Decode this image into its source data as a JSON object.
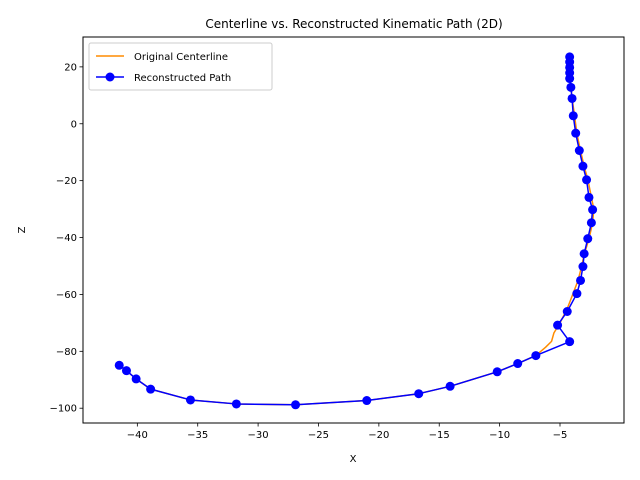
{
  "chart_data": {
    "type": "line",
    "title": "Centerline vs. Reconstructed Kinematic Path (2D)",
    "xlabel": "X",
    "ylabel": "Z",
    "xlim": [
      -44.5,
      0.3
    ],
    "ylim": [
      -105.2,
      30.5
    ],
    "xticks": [
      -40,
      -35,
      -30,
      -25,
      -20,
      -15,
      -10,
      -5
    ],
    "yticks": [
      -100,
      -80,
      -60,
      -40,
      -20,
      0,
      20
    ],
    "xtick_labels": [
      "−40",
      "−35",
      "−30",
      "−25",
      "−20",
      "−15",
      "−10",
      "−5"
    ],
    "ytick_labels": [
      "−100",
      "−80",
      "−60",
      "−40",
      "−20",
      "0",
      "20"
    ],
    "grid": false,
    "legend_position": "upper-left",
    "series": [
      {
        "name": "Original Centerline",
        "color": "#ff8c00",
        "marker": "none",
        "x": [
          -4.2,
          -4.2,
          -4.2,
          -4.2,
          -4.2,
          -4.1,
          -4.0,
          -3.8,
          -3.6,
          -3.3,
          -3.0,
          -2.7,
          -2.4,
          -2.2,
          -2.3,
          -2.6,
          -3.0,
          -3.2,
          -3.5,
          -3.9,
          -4.4,
          -5.0,
          -5.5,
          -5.7,
          -6.2,
          -7.0,
          -8.5,
          -10.2,
          -14.1,
          -16.7,
          -21.0,
          -26.9,
          -31.8,
          -35.6,
          -38.9,
          -40.1,
          -40.9,
          -41.5
        ],
        "y": [
          23.5,
          22.0,
          20.0,
          18.0,
          16.0,
          13.0,
          9.0,
          3.0,
          -3.5,
          -9.5,
          -15.0,
          -19.5,
          -25.8,
          -30.0,
          -34.8,
          -40.5,
          -46.0,
          -50.0,
          -55.0,
          -59.5,
          -65.0,
          -70.0,
          -73.5,
          -76.5,
          -78.6,
          -81.5,
          -84.3,
          -87.2,
          -92.3,
          -94.9,
          -97.3,
          -98.8,
          -98.5,
          -97.1,
          -93.3,
          -89.7,
          -86.8,
          -84.9
        ]
      },
      {
        "name": "Reconstructed Path",
        "color": "#0000ff",
        "marker": "circle",
        "x": [
          -4.2,
          -4.2,
          -4.2,
          -4.2,
          -4.2,
          -4.1,
          -4.0,
          -3.9,
          -3.7,
          -3.4,
          -3.1,
          -2.8,
          -2.6,
          -2.3,
          -2.4,
          -2.7,
          -3.0,
          -3.1,
          -3.3,
          -3.6,
          -4.4,
          -5.2,
          -4.2,
          -7.0,
          -8.5,
          -10.2,
          -14.1,
          -16.7,
          -21.0,
          -26.9,
          -31.8,
          -35.6,
          -38.9,
          -40.1,
          -40.9,
          -41.5
        ],
        "y": [
          23.5,
          21.7,
          19.8,
          17.9,
          15.9,
          12.8,
          8.9,
          2.8,
          -3.3,
          -9.4,
          -14.9,
          -19.7,
          -25.9,
          -30.2,
          -34.8,
          -40.4,
          -45.7,
          -50.2,
          -55.1,
          -59.7,
          -66.0,
          -70.8,
          -76.6,
          -81.5,
          -84.3,
          -87.2,
          -92.3,
          -94.9,
          -97.3,
          -98.8,
          -98.5,
          -97.1,
          -93.3,
          -89.7,
          -86.8,
          -84.9
        ]
      }
    ]
  }
}
